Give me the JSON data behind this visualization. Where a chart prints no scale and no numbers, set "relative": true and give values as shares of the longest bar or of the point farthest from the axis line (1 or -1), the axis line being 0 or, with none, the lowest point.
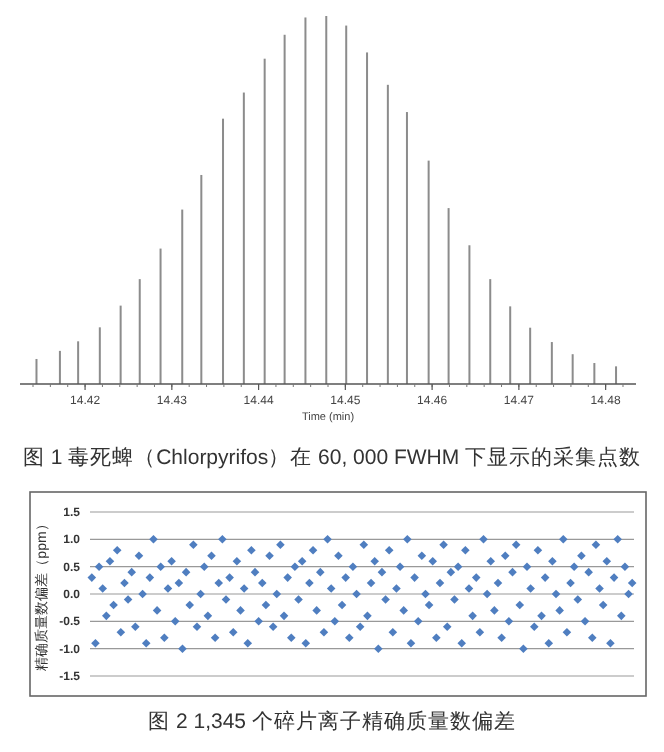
{
  "chart_data": [
    {
      "type": "bar",
      "relative": true,
      "title": "图 1 毒死蜱（Chlorpyrifos）在 60, 000 FWHM 下显示的采集点数",
      "xlabel": "Time (min)",
      "color": "#8c8c8c",
      "x": [
        14.4144,
        14.4171,
        14.4192,
        14.4217,
        14.4241,
        14.4263,
        14.4287,
        14.4312,
        14.4334,
        14.4359,
        14.4383,
        14.4407,
        14.443,
        14.4454,
        14.4478,
        14.4501,
        14.4525,
        14.4549,
        14.4571,
        14.4596,
        14.4619,
        14.4643,
        14.4667,
        14.469,
        14.4713,
        14.4738,
        14.4762,
        14.4787,
        14.4812
      ],
      "values": [
        0.068,
        0.09,
        0.116,
        0.154,
        0.213,
        0.285,
        0.368,
        0.474,
        0.568,
        0.721,
        0.792,
        0.884,
        0.949,
        0.996,
        1,
        0.974,
        0.901,
        0.813,
        0.739,
        0.607,
        0.478,
        0.377,
        0.285,
        0.211,
        0.153,
        0.114,
        0.081,
        0.057,
        0.048
      ],
      "xlim": [
        14.4125,
        14.4835
      ],
      "xticks": [
        14.42,
        14.43,
        14.44,
        14.45,
        14.46,
        14.47,
        14.48
      ]
    },
    {
      "type": "scatter",
      "title": "图 2  1,345 个碎片离子精确质量数偏差",
      "ylabel": "精确质量数偏差（ppm）",
      "color": "#4f7ec0",
      "marker": "diamond",
      "grid": "y",
      "tick_labels": "y",
      "ylim": [
        -1.5,
        1.5
      ],
      "yticks": [
        {
          "value": -1.5,
          "label": "-1.5"
        },
        {
          "value": -1,
          "label": "-1.0"
        },
        {
          "value": -0.5,
          "label": "-0.5"
        },
        {
          "value": 0,
          "label": "0.0"
        },
        {
          "value": 0.5,
          "label": "0.5"
        },
        {
          "value": 1,
          "label": "1.0"
        },
        {
          "value": 1.5,
          "label": "1.5"
        }
      ],
      "categories": [
        null,
        null,
        null,
        null,
        null,
        null,
        null,
        null,
        null,
        null,
        null,
        null,
        null,
        null,
        null,
        null,
        null,
        null,
        null,
        null,
        null,
        null,
        null,
        null,
        null,
        null,
        null,
        null,
        null,
        null,
        null,
        null,
        null,
        null,
        null,
        null,
        null,
        null,
        null,
        null,
        null,
        null,
        null,
        null,
        null,
        null,
        null,
        null,
        null,
        null,
        null,
        null,
        null,
        null,
        null,
        null,
        null,
        null,
        null,
        null,
        null,
        null,
        null,
        null,
        null,
        null,
        null,
        null,
        null,
        null,
        null,
        null,
        null,
        null,
        null,
        null,
        null,
        null,
        null,
        null,
        null,
        null,
        null,
        null,
        null,
        null,
        null,
        null,
        null,
        null,
        null,
        null,
        null,
        null,
        null,
        null,
        null,
        null,
        null,
        null,
        null,
        null,
        null,
        null,
        null,
        null,
        null,
        null,
        null,
        null,
        null,
        null,
        null,
        null,
        null,
        null,
        null,
        null,
        null,
        null,
        null,
        null,
        null,
        null,
        null,
        null,
        null,
        null,
        null,
        null,
        null,
        null,
        null,
        null,
        null,
        null,
        null,
        null,
        null,
        null,
        null,
        null,
        null,
        null,
        null,
        null,
        null,
        null,
        null,
        null
      ],
      "values": [
        0.3,
        -0.9,
        0.5,
        0.1,
        -0.4,
        0.6,
        -0.2,
        0.8,
        -0.7,
        0.2,
        -0.1,
        0.4,
        -0.6,
        0.7,
        0.0,
        -0.9,
        0.3,
        1.0,
        -0.3,
        0.5,
        -0.8,
        0.1,
        0.6,
        -0.5,
        0.2,
        -1.0,
        0.4,
        -0.2,
        0.9,
        -0.6,
        0.0,
        0.5,
        -0.4,
        0.7,
        -0.8,
        0.2,
        1.0,
        -0.1,
        0.3,
        -0.7,
        0.6,
        -0.3,
        0.1,
        -0.9,
        0.8,
        0.4,
        -0.5,
        0.2,
        -0.2,
        0.7,
        -0.6,
        0.0,
        0.9,
        -0.4,
        0.3,
        -0.8,
        0.5,
        -0.1,
        0.6,
        -0.9,
        0.2,
        0.8,
        -0.3,
        0.4,
        -0.7,
        1.0,
        0.1,
        -0.5,
        0.7,
        -0.2,
        0.3,
        -0.8,
        0.5,
        0.0,
        -0.6,
        0.9,
        -0.4,
        0.2,
        0.6,
        -1.0,
        0.4,
        -0.1,
        0.8,
        -0.7,
        0.1,
        0.5,
        -0.3,
        1.0,
        -0.9,
        0.3,
        -0.5,
        0.7,
        0.0,
        -0.2,
        0.6,
        -0.8,
        0.2,
        0.9,
        -0.6,
        0.4,
        -0.1,
        0.5,
        -0.9,
        0.8,
        0.1,
        -0.4,
        0.3,
        -0.7,
        1.0,
        0.0,
        0.6,
        -0.3,
        0.2,
        -0.8,
        0.7,
        -0.5,
        0.4,
        0.9,
        -0.2,
        -1.0,
        0.5,
        0.1,
        -0.6,
        0.8,
        -0.4,
        0.3,
        -0.9,
        0.6,
        0.0,
        -0.3,
        1.0,
        -0.7,
        0.2,
        0.5,
        -0.1,
        0.7,
        -0.5,
        0.4,
        -0.8,
        0.9,
        0.1,
        -0.2,
        0.6,
        -0.9,
        0.3,
        1.0,
        -0.4,
        0.5,
        0.0,
        0.2
      ]
    }
  ]
}
